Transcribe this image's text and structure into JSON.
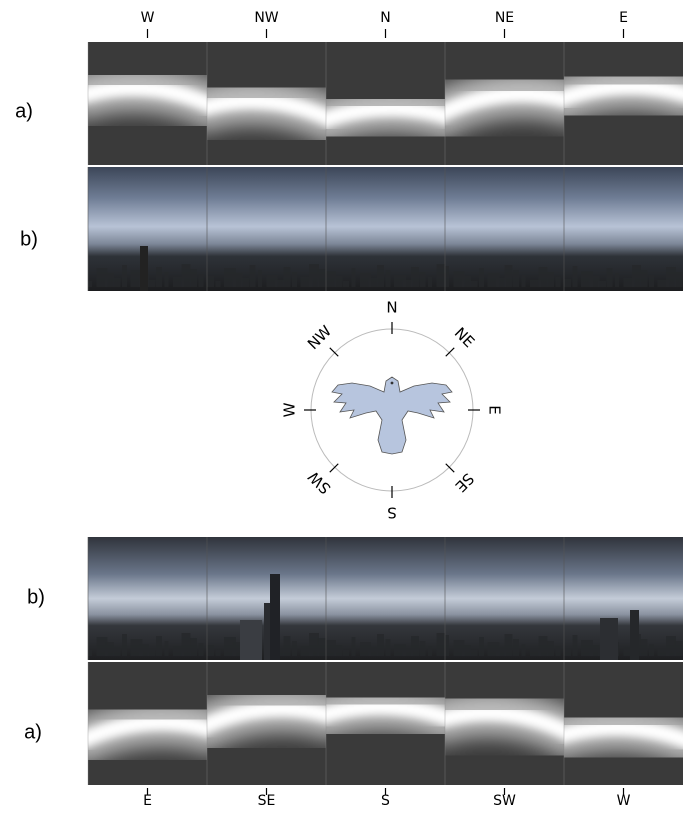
{
  "top_strip": {
    "directions": [
      "W",
      "NW",
      "N",
      "NE",
      "E"
    ],
    "rows": [
      "a)",
      "b)"
    ]
  },
  "compass": {
    "labels": [
      "N",
      "NE",
      "E",
      "SE",
      "S",
      "SW",
      "W",
      "NW"
    ]
  },
  "bottom_strip": {
    "rows": [
      "b)",
      "a)"
    ],
    "directions": [
      "E",
      "SE",
      "S",
      "SW",
      "W"
    ]
  }
}
